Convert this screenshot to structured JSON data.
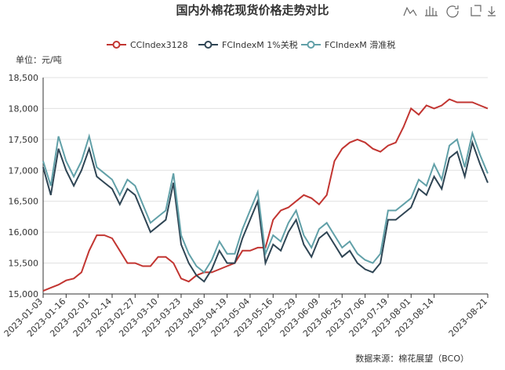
{
  "chart_data": {
    "type": "line",
    "title": "国内外棉花现货价格走势对比",
    "y_unit": "单位：元/吨",
    "source": "数据来源：棉花展望（BCO）",
    "categories": [
      "2023-01-03",
      null,
      null,
      "2023-01-16",
      null,
      null,
      "2023-02-01",
      null,
      null,
      "2023-02-14",
      null,
      null,
      "2023-02-27",
      null,
      null,
      "2023-03-10",
      null,
      null,
      "2023-03-23",
      null,
      null,
      "2023-04-06",
      null,
      null,
      "2023-04-19",
      null,
      null,
      "2023-05-04",
      null,
      null,
      "2023-05-16",
      null,
      null,
      "2023-05-29",
      null,
      null,
      "2023-06-09",
      null,
      null,
      "2023-06-25",
      null,
      null,
      "2023-07-06",
      null,
      null,
      "2023-07-19",
      null,
      null,
      "2023-08-01",
      null,
      null,
      "2023-08-14",
      null,
      null,
      null,
      null,
      null,
      null,
      "2023-08-21"
    ],
    "series": [
      {
        "name": "CCIndex3128",
        "color": "#c23531",
        "values": [
          15050,
          15100,
          15150,
          15220,
          15250,
          15350,
          15700,
          15950,
          15950,
          15900,
          15700,
          15500,
          15500,
          15450,
          15450,
          15600,
          15600,
          15500,
          15250,
          15200,
          15300,
          15350,
          15350,
          15400,
          15450,
          15500,
          15700,
          15700,
          15750,
          15750,
          16200,
          16350,
          16400,
          16500,
          16600,
          16550,
          16450,
          16600,
          17150,
          17350,
          17450,
          17500,
          17450,
          17350,
          17300,
          17400,
          17450,
          17700,
          18000,
          17900,
          18050,
          18000,
          18050,
          18150,
          18100,
          18100,
          18100,
          18050,
          18000
        ]
      },
      {
        "name": "FCIndexM 1%关税",
        "color": "#2f4554",
        "values": [
          17050,
          16600,
          17350,
          17000,
          16750,
          17000,
          17350,
          16900,
          16800,
          16700,
          16450,
          16700,
          16600,
          16300,
          16000,
          16100,
          16200,
          16800,
          15800,
          15500,
          15300,
          15200,
          15400,
          15700,
          15500,
          15500,
          15900,
          16200,
          16500,
          15500,
          15800,
          15700,
          16000,
          16200,
          15800,
          15600,
          15900,
          16000,
          15800,
          15600,
          15700,
          15500,
          15400,
          15350,
          15500,
          16200,
          16200,
          16300,
          16400,
          16700,
          16600,
          16900,
          16700,
          17200,
          17300,
          16900,
          17450,
          17100,
          16800
        ]
      },
      {
        "name": "FCIndexM 滑准税",
        "color": "#61a0a8",
        "values": [
          17150,
          16750,
          17550,
          17150,
          16900,
          17150,
          17550,
          17050,
          16950,
          16850,
          16600,
          16850,
          16750,
          16450,
          16150,
          16250,
          16350,
          16950,
          15950,
          15650,
          15450,
          15350,
          15550,
          15850,
          15650,
          15650,
          16050,
          16350,
          16650,
          15650,
          15950,
          15850,
          16150,
          16350,
          15950,
          15750,
          16050,
          16150,
          15950,
          15750,
          15850,
          15650,
          15550,
          15500,
          15650,
          16350,
          16350,
          16450,
          16550,
          16850,
          16750,
          17100,
          16850,
          17400,
          17500,
          17050,
          17600,
          17250,
          16950
        ]
      }
    ],
    "ylim": [
      15000,
      18500
    ],
    "yticks": [
      {
        "value": 15000,
        "label": "15,000"
      },
      {
        "value": 15500,
        "label": "15,500"
      },
      {
        "value": 16000,
        "label": "16,000"
      },
      {
        "value": 16500,
        "label": "16,500"
      },
      {
        "value": 17000,
        "label": "17,000"
      },
      {
        "value": 17500,
        "label": "17,500"
      },
      {
        "value": 18000,
        "label": "18,000"
      },
      {
        "value": 18500,
        "label": "18,500"
      }
    ],
    "grid": true,
    "legend": "top"
  }
}
